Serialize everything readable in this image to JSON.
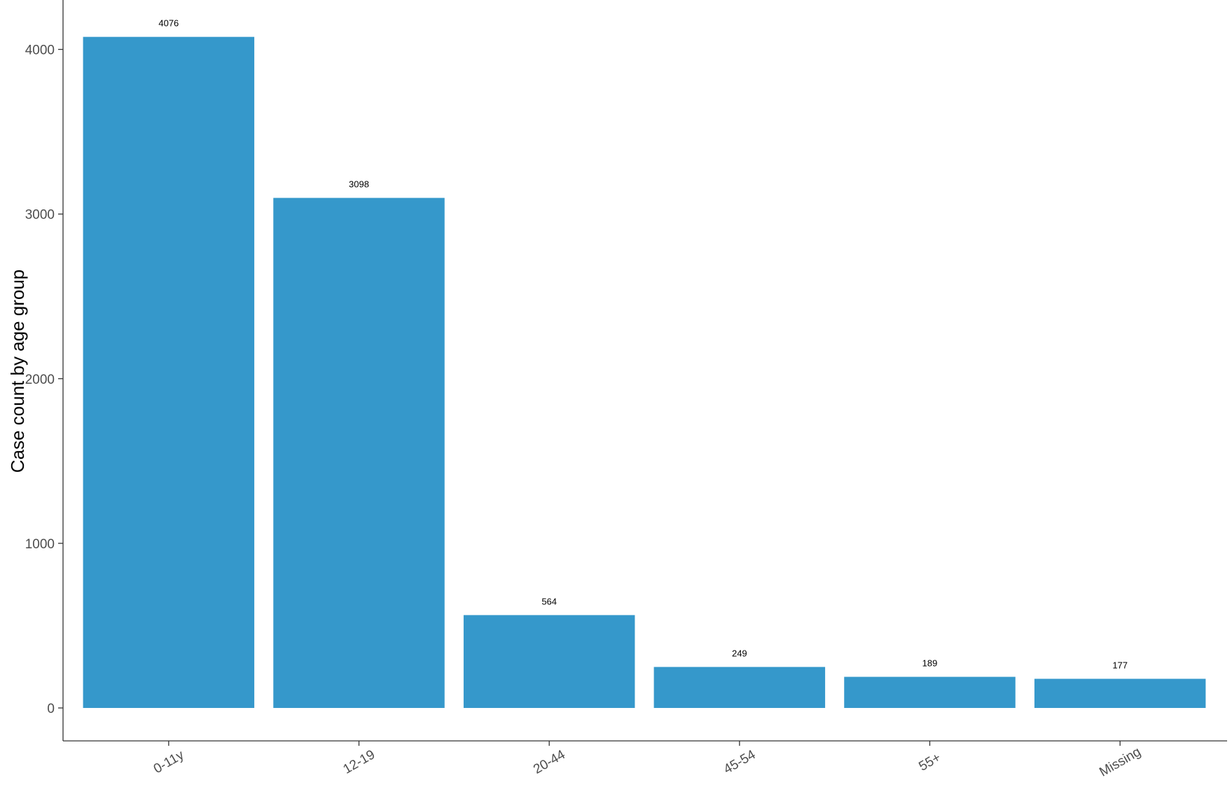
{
  "chart_data": {
    "type": "bar",
    "title": "",
    "xlabel": "",
    "ylabel": "Case count by age group",
    "categories": [
      "0-11y",
      "12-19",
      "20-44",
      "45-54",
      "55+",
      "Missing"
    ],
    "values": [
      4076,
      3098,
      564,
      249,
      189,
      177
    ],
    "data_labels": [
      "4076",
      "3098",
      "564",
      "249",
      "189",
      "177"
    ],
    "ylim": [
      -200,
      4300
    ],
    "yticks": [
      0,
      1000,
      2000,
      3000,
      4000
    ],
    "grid": false,
    "legend": "none",
    "bar_color": "#3598CB",
    "x_tick_label_rotation": "angled"
  }
}
